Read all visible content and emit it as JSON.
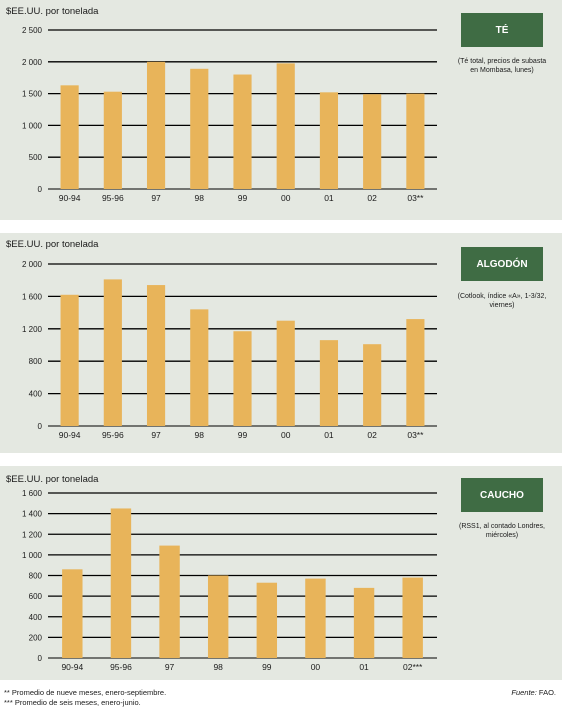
{
  "chart_data": [
    {
      "type": "bar",
      "name": "TÉ",
      "note": "(Té total, precios de subasta en Mombasa, lunes)",
      "ylabel": "$EE.UU. por tonelada",
      "categories": [
        "90-94",
        "95-96",
        "97",
        "98",
        "99",
        "00",
        "01",
        "02",
        "03**"
      ],
      "values": [
        1630,
        1530,
        2000,
        1890,
        1800,
        1975,
        1520,
        1490,
        1500
      ],
      "ylim": [
        0,
        2500
      ],
      "yticks": [
        0,
        500,
        1000,
        1500,
        2000,
        2500
      ],
      "ytick_labels": [
        "0",
        "500",
        "1 000",
        "1 500",
        "2 000",
        "2 500"
      ],
      "color": "#e8b45a"
    },
    {
      "type": "bar",
      "name": "ALGODÓN",
      "note": "(Cotlook, índice «A», 1-3/32, viernes)",
      "ylabel": "$EE.UU. por tonelada",
      "categories": [
        "90-94",
        "95-96",
        "97",
        "98",
        "99",
        "00",
        "01",
        "02",
        "03**"
      ],
      "values": [
        1620,
        1810,
        1740,
        1440,
        1170,
        1300,
        1060,
        1010,
        1320
      ],
      "ylim": [
        0,
        2000
      ],
      "yticks": [
        0,
        400,
        800,
        1200,
        1600,
        2000
      ],
      "ytick_labels": [
        "0",
        "400",
        "800",
        "1 200",
        "1 600",
        "2 000"
      ],
      "color": "#e8b45a"
    },
    {
      "type": "bar",
      "name": "CAUCHO",
      "note": "(RSS1, al contado Londres, miércoles)",
      "ylabel": "$EE.UU. por tonelada",
      "categories": [
        "90-94",
        "95-96",
        "97",
        "98",
        "99",
        "00",
        "01",
        "02***"
      ],
      "values": [
        860,
        1450,
        1090,
        800,
        730,
        770,
        680,
        780
      ],
      "ylim": [
        0,
        1600
      ],
      "yticks": [
        0,
        200,
        400,
        600,
        800,
        1000,
        1200,
        1400,
        1600
      ],
      "ytick_labels": [
        "0",
        "200",
        "400",
        "600",
        "800",
        "1 000",
        "1 200",
        "1 400",
        "1 600"
      ],
      "color": "#e8b45a"
    }
  ],
  "footnotes": [
    "** Promedio de nueve meses, enero-septiembre.",
    "*** Promedio de seis meses, enero-junio."
  ],
  "source_label": "Fuente:",
  "source_value": "FAO.",
  "colors": {
    "panel": "#e4e8e1",
    "badge": "#3f6c44",
    "bar": "#e8b45a",
    "grid": "#000000"
  }
}
